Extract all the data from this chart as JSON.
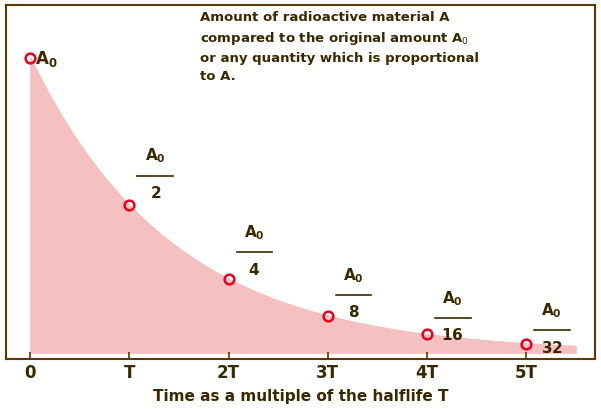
{
  "xlabel": "Time as a multiple of the halflife T",
  "xtick_positions": [
    0,
    1,
    2,
    3,
    4,
    5
  ],
  "xtick_labels": [
    "0",
    "T",
    "2T",
    "3T",
    "4T",
    "5T"
  ],
  "point_x": [
    0,
    1,
    2,
    3,
    4,
    5
  ],
  "point_y": [
    1.0,
    0.5,
    0.25,
    0.125,
    0.0625,
    0.03125
  ],
  "marker_color": "#e8001c",
  "fill_color": "#f5c0c0",
  "background_color": "#ffffff",
  "border_color": "#5a3a00",
  "annotation_color": "#3a2800",
  "figsize": [
    6.01,
    4.1
  ],
  "dpi": 100,
  "ylim": [
    -0.02,
    1.18
  ],
  "xlim": [
    -0.25,
    5.7
  ]
}
